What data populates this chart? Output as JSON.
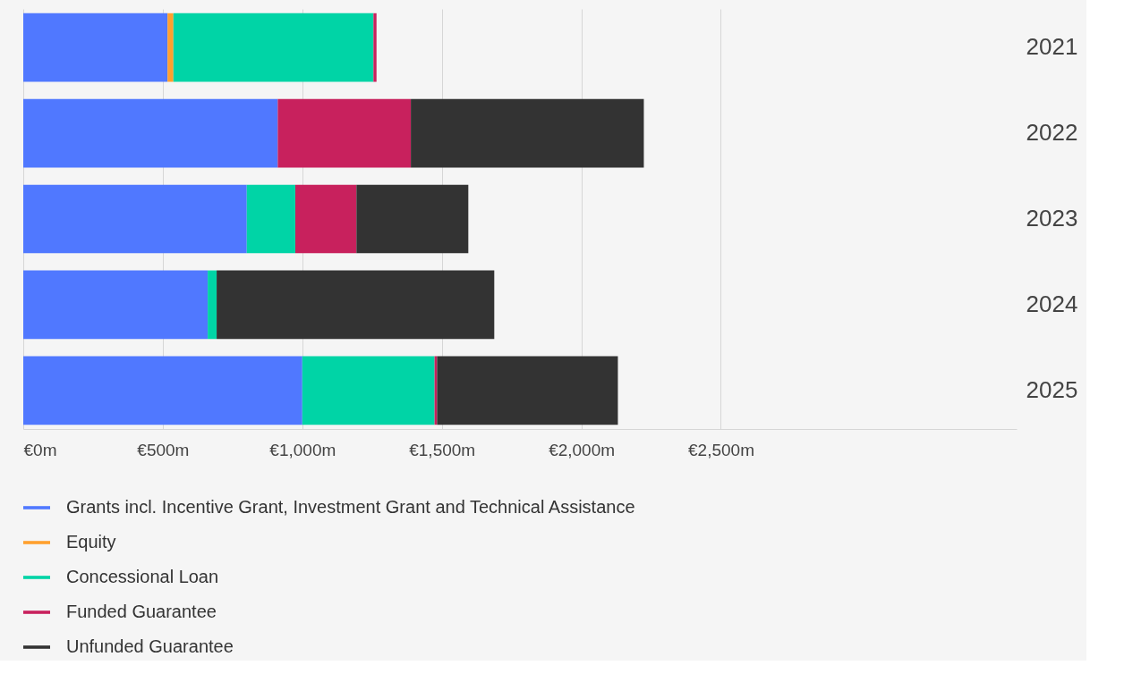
{
  "chart_data": {
    "type": "bar",
    "orientation": "horizontal",
    "stacked": true,
    "categories": [
      "2021",
      "2022",
      "2023",
      "2024",
      "2025"
    ],
    "series": [
      {
        "name": "Grants incl. Incentive Grant, Investment Grant and Technical Assistance",
        "color": "#5078ff",
        "values": [
          517,
          912,
          801,
          661,
          1000
        ]
      },
      {
        "name": "Equity",
        "color": "#ffa02e",
        "values": [
          21,
          0,
          0,
          0,
          0
        ]
      },
      {
        "name": "Concessional Loan",
        "color": "#00d4a6",
        "values": [
          717,
          0,
          174,
          32,
          474
        ]
      },
      {
        "name": "Funded Guarantee",
        "color": "#c8215d",
        "values": [
          11,
          477,
          219,
          0,
          9
        ]
      },
      {
        "name": "Unfunded Guarantee",
        "color": "#333333",
        "values": [
          0,
          835,
          401,
          995,
          648
        ]
      }
    ],
    "xlim": [
      0,
      3560
    ],
    "xticks": [
      {
        "value": 0,
        "label": "€0m"
      },
      {
        "value": 500,
        "label": "€500m"
      },
      {
        "value": 1000,
        "label": "€1,000m"
      },
      {
        "value": 1500,
        "label": "€1,500m"
      },
      {
        "value": 2000,
        "label": "€2,000m"
      },
      {
        "value": 2500,
        "label": "€2,500m"
      }
    ],
    "grid": "x",
    "legend": "bottom left"
  }
}
